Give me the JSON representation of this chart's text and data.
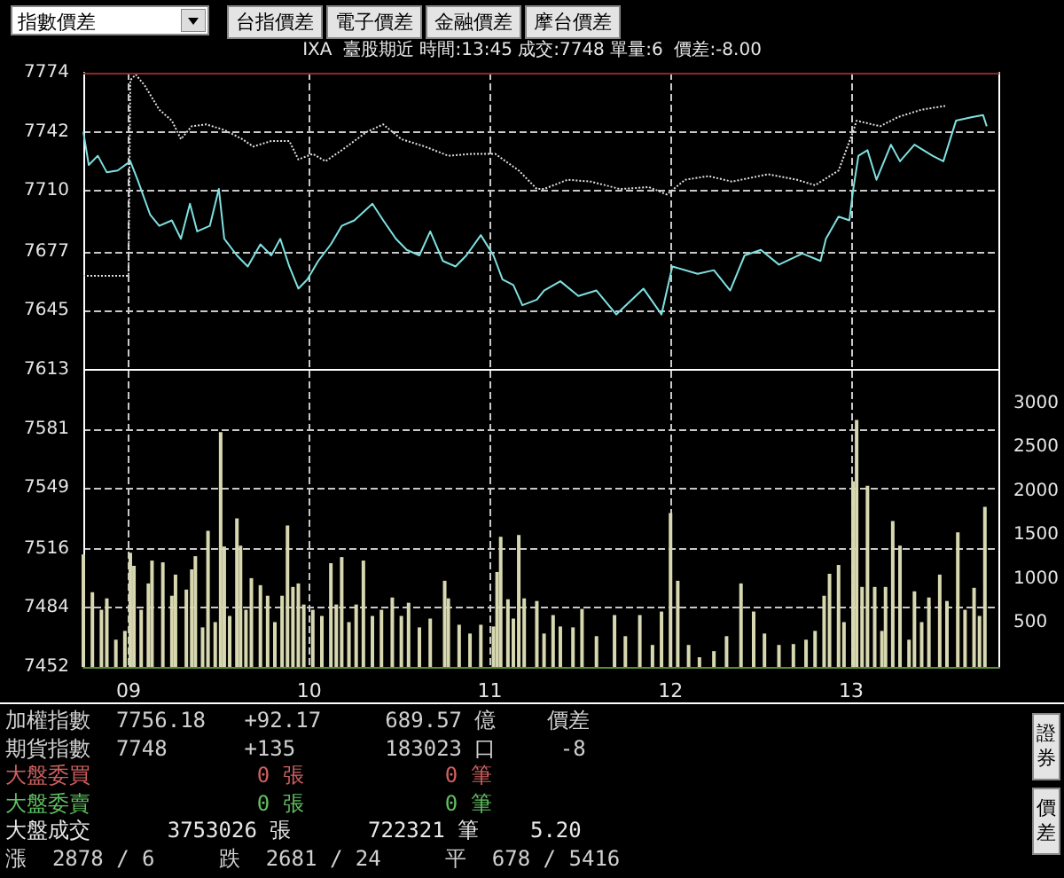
{
  "chart_data": {
    "type": "line",
    "title": "IXA  臺股期近 時間:13:45 成交:7748 單量:6  價差:-8.00",
    "xlim": [
      8.75,
      13.82
    ],
    "xticks": [
      {
        "value": 9,
        "label": "09"
      },
      10,
      11,
      12,
      13
    ],
    "ylim": [
      7452,
      7774
    ],
    "yticks": [
      7452,
      7484,
      7516,
      7549,
      7581,
      7613,
      7645,
      7677,
      7710,
      7742,
      7774
    ],
    "y2lim": [
      0,
      6760
    ],
    "y2ticks": [
      500,
      1000,
      1500,
      2000,
      2500,
      3000
    ],
    "grid": true,
    "marker": "none",
    "series": [
      {
        "color": "#e0e0e0",
        "line_style": "dotted",
        "x": [
          8.75,
          9.0,
          9.01,
          9.04,
          9.09,
          9.17,
          9.24,
          9.29,
          9.35,
          9.43,
          9.53,
          9.63,
          9.69,
          9.79,
          9.89,
          9.94,
          10.02,
          10.09,
          10.18,
          10.32,
          10.41,
          10.51,
          10.64,
          10.77,
          10.9,
          11.03,
          11.16,
          11.26,
          11.3,
          11.43,
          11.56,
          11.72,
          11.88,
          11.98,
          12.08,
          12.21,
          12.34,
          12.54,
          12.7,
          12.8,
          12.93,
          13.01,
          13.03,
          13.16,
          13.26,
          13.39,
          13.52
        ],
        "values": [
          7664,
          7664,
          7770,
          7773,
          7767,
          7754,
          7748,
          7738,
          7745,
          7746,
          7743,
          7738,
          7734,
          7737,
          7737,
          7727,
          7730,
          7726,
          7732,
          7742,
          7746,
          7738,
          7734,
          7729,
          7730,
          7730,
          7721,
          7711,
          7711,
          7716,
          7715,
          7711,
          7712,
          7708,
          7716,
          7718,
          7715,
          7719,
          7716,
          7713,
          7721,
          7742,
          7748,
          7745,
          7750,
          7754,
          7756
        ]
      },
      {
        "color": "#7fe0e0",
        "line_style": "solid",
        "x": [
          8.75,
          8.78,
          8.83,
          8.88,
          8.94,
          9.01,
          9.05,
          9.12,
          9.17,
          9.24,
          9.29,
          9.34,
          9.38,
          9.45,
          9.5,
          9.53,
          9.6,
          9.66,
          9.73,
          9.79,
          9.84,
          9.89,
          9.94,
          9.99,
          10.05,
          10.12,
          10.18,
          10.25,
          10.35,
          10.41,
          10.48,
          10.54,
          10.61,
          10.67,
          10.74,
          10.81,
          10.87,
          10.95,
          11.02,
          11.07,
          11.13,
          11.18,
          11.26,
          11.3,
          11.39,
          11.49,
          11.59,
          11.7,
          11.85,
          11.95,
          12.01,
          12.15,
          12.24,
          12.33,
          12.41,
          12.5,
          12.6,
          12.73,
          12.83,
          12.86,
          12.93,
          12.99,
          13.01,
          13.04,
          13.09,
          13.14,
          13.22,
          13.27,
          13.35,
          13.45,
          13.51,
          13.58,
          13.67,
          13.73,
          13.75
        ],
        "values": [
          7742,
          7724,
          7729,
          7720,
          7721,
          7726,
          7716,
          7697,
          7691,
          7694,
          7684,
          7703,
          7688,
          7691,
          7711,
          7684,
          7675,
          7669,
          7681,
          7675,
          7684,
          7669,
          7657,
          7662,
          7672,
          7681,
          7691,
          7694,
          7703,
          7694,
          7684,
          7678,
          7675,
          7688,
          7672,
          7669,
          7675,
          7686,
          7675,
          7662,
          7659,
          7648,
          7651,
          7656,
          7661,
          7653,
          7656,
          7643,
          7657,
          7643,
          7669,
          7665,
          7667,
          7656,
          7675,
          7678,
          7670,
          7676,
          7672,
          7684,
          7696,
          7694,
          7710,
          7729,
          7732,
          7716,
          7735,
          7726,
          7735,
          7729,
          7726,
          7748,
          7750,
          7751,
          7745
        ]
      },
      {
        "type": "bar",
        "axis": "y2",
        "color": "#d8d8b0",
        "x": [
          8.75,
          8.8,
          8.85,
          8.88,
          8.93,
          8.98,
          9.01,
          9.03,
          9.07,
          9.11,
          9.13,
          9.19,
          9.24,
          9.26,
          9.32,
          9.35,
          9.37,
          9.41,
          9.44,
          9.48,
          9.51,
          9.53,
          9.56,
          9.6,
          9.62,
          9.65,
          9.68,
          9.73,
          9.77,
          9.81,
          9.85,
          9.88,
          9.91,
          9.94,
          9.97,
          10.02,
          10.07,
          10.12,
          10.15,
          10.18,
          10.22,
          10.26,
          10.3,
          10.35,
          10.4,
          10.46,
          10.51,
          10.55,
          10.61,
          10.67,
          10.75,
          10.77,
          10.83,
          10.89,
          10.95,
          11.02,
          11.04,
          11.06,
          11.1,
          11.13,
          11.16,
          11.19,
          11.26,
          11.3,
          11.35,
          11.39,
          11.46,
          11.51,
          11.59,
          11.69,
          11.75,
          11.83,
          11.9,
          11.95,
          12.0,
          12.04,
          12.1,
          12.16,
          12.24,
          12.31,
          12.39,
          12.46,
          12.52,
          12.6,
          12.68,
          12.75,
          12.8,
          12.85,
          12.88,
          12.93,
          12.96,
          13.01,
          13.03,
          13.06,
          13.09,
          13.13,
          13.17,
          13.19,
          13.23,
          13.27,
          13.32,
          13.35,
          13.39,
          13.43,
          13.49,
          13.53,
          13.59,
          13.63,
          13.68,
          13.71,
          13.74
        ],
        "values": [
          1280,
          850,
          650,
          780,
          310,
          410,
          1300,
          1150,
          650,
          950,
          1210,
          1190,
          810,
          1050,
          880,
          1110,
          1260,
          450,
          1550,
          510,
          2670,
          1370,
          580,
          1690,
          1380,
          650,
          1010,
          930,
          810,
          510,
          810,
          1610,
          910,
          950,
          710,
          650,
          580,
          1180,
          710,
          1250,
          510,
          710,
          1210,
          580,
          650,
          790,
          580,
          730,
          450,
          550,
          980,
          780,
          480,
          380,
          480,
          460,
          1080,
          1480,
          770,
          550,
          1500,
          780,
          750,
          380,
          590,
          460,
          450,
          660,
          350,
          590,
          350,
          590,
          250,
          630,
          1750,
          980,
          250,
          110,
          180,
          350,
          950,
          630,
          380,
          250,
          260,
          310,
          410,
          810,
          1060,
          1160,
          510,
          2110,
          2810,
          910,
          2060,
          910,
          410,
          910,
          1660,
          1380,
          310,
          860,
          510,
          790,
          1050,
          750,
          1530,
          650,
          900,
          580,
          1820
        ]
      }
    ],
    "ref_lines": [
      {
        "axis": "y",
        "value": 7613,
        "color": "#ffffff",
        "line_style": "solid"
      },
      {
        "axis": "y",
        "value": 7774,
        "color": "#8b2a2a",
        "line_style": "solid"
      }
    ],
    "annotations": [
      "指數價差",
      "台指價差",
      "電子價差",
      "金融價差",
      "摩台價差",
      "加權指數  7756.18   +92.17     689.57 億    價差",
      "期貨指數  7748      +135       183023 口     -8",
      "大盤委買             0 張           0 筆",
      "大盤委賣             0 張           0 筆",
      "大盤成交      3753026 張      722321 筆    5.20",
      "漲  2878 / 6     跌  2681 / 24     平  678 / 5416",
      "證券",
      "價差"
    ]
  }
}
